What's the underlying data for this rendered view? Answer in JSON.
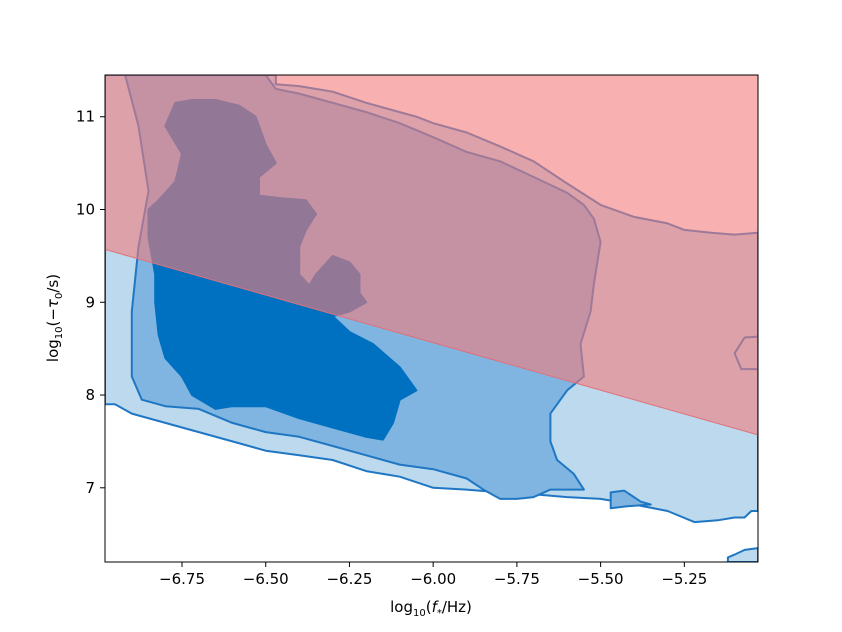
{
  "chart_data": {
    "type": "contour",
    "xlabel": "log10(f*/Hz)",
    "ylabel": "log10(−τ0/s)",
    "xlim": [
      -6.98,
      -5.03
    ],
    "ylim": [
      6.2,
      11.45
    ],
    "xticks": [
      {
        "value": -6.75,
        "label": "−6.75"
      },
      {
        "value": -6.5,
        "label": "−6.50"
      },
      {
        "value": -6.25,
        "label": "−6.25"
      },
      {
        "value": -6.0,
        "label": "−6.00"
      },
      {
        "value": -5.75,
        "label": "−5.75"
      },
      {
        "value": -5.5,
        "label": "−5.50"
      },
      {
        "value": -5.25,
        "label": "−5.25"
      }
    ],
    "yticks": [
      {
        "value": 7,
        "label": "7"
      },
      {
        "value": 8,
        "label": "8"
      },
      {
        "value": 9,
        "label": "9"
      },
      {
        "value": 10,
        "label": "10"
      },
      {
        "value": 11,
        "label": "11"
      }
    ],
    "excluded_region": {
      "color": "#f47c7c",
      "boundary_line": [
        [
          -6.98,
          9.57
        ],
        [
          -5.03,
          7.57
        ]
      ]
    },
    "contours": [
      {
        "level": "outer",
        "fill": "#bcd9ee",
        "stroke": "#1f77c4",
        "points": [
          [
            -6.98,
            7.9
          ],
          [
            -6.95,
            7.9
          ],
          [
            -6.9,
            7.8
          ],
          [
            -6.8,
            7.7
          ],
          [
            -6.7,
            7.6
          ],
          [
            -6.6,
            7.5
          ],
          [
            -6.5,
            7.4
          ],
          [
            -6.4,
            7.35
          ],
          [
            -6.3,
            7.3
          ],
          [
            -6.2,
            7.18
          ],
          [
            -6.1,
            7.12
          ],
          [
            -6.0,
            7.0
          ],
          [
            -5.9,
            6.98
          ],
          [
            -5.8,
            6.95
          ],
          [
            -5.7,
            6.93
          ],
          [
            -5.6,
            6.9
          ],
          [
            -5.5,
            6.88
          ],
          [
            -5.4,
            6.82
          ],
          [
            -5.3,
            6.75
          ],
          [
            -5.22,
            6.63
          ],
          [
            -5.15,
            6.65
          ],
          [
            -5.1,
            6.68
          ],
          [
            -5.07,
            6.68
          ],
          [
            -5.05,
            6.75
          ],
          [
            -5.03,
            6.75
          ],
          [
            -5.03,
            9.75
          ],
          [
            -5.1,
            9.73
          ],
          [
            -5.17,
            9.75
          ],
          [
            -5.25,
            9.78
          ],
          [
            -5.3,
            9.85
          ],
          [
            -5.4,
            9.92
          ],
          [
            -5.5,
            10.05
          ],
          [
            -5.6,
            10.28
          ],
          [
            -5.7,
            10.52
          ],
          [
            -5.8,
            10.68
          ],
          [
            -5.9,
            10.83
          ],
          [
            -6.0,
            10.93
          ],
          [
            -6.05,
            11.0
          ],
          [
            -6.1,
            11.05
          ],
          [
            -6.2,
            11.15
          ],
          [
            -6.3,
            11.27
          ],
          [
            -6.4,
            11.33
          ],
          [
            -6.47,
            11.35
          ],
          [
            -6.47,
            11.45
          ],
          [
            -6.98,
            11.45
          ]
        ]
      },
      {
        "level": "middle",
        "fill": "#7fb5e0",
        "stroke": "#1f77c4",
        "points": [
          [
            -6.92,
            11.45
          ],
          [
            -6.88,
            10.9
          ],
          [
            -6.85,
            10.2
          ],
          [
            -6.88,
            9.6
          ],
          [
            -6.9,
            8.9
          ],
          [
            -6.9,
            8.2
          ],
          [
            -6.87,
            7.95
          ],
          [
            -6.8,
            7.88
          ],
          [
            -6.7,
            7.85
          ],
          [
            -6.6,
            7.7
          ],
          [
            -6.5,
            7.6
          ],
          [
            -6.4,
            7.55
          ],
          [
            -6.3,
            7.45
          ],
          [
            -6.2,
            7.35
          ],
          [
            -6.1,
            7.25
          ],
          [
            -6.0,
            7.2
          ],
          [
            -5.9,
            7.1
          ],
          [
            -5.85,
            6.98
          ],
          [
            -5.8,
            6.88
          ],
          [
            -5.75,
            6.88
          ],
          [
            -5.7,
            6.9
          ],
          [
            -5.65,
            6.98
          ],
          [
            -5.6,
            6.98
          ],
          [
            -5.55,
            6.98
          ],
          [
            -5.58,
            7.15
          ],
          [
            -5.63,
            7.3
          ],
          [
            -5.65,
            7.5
          ],
          [
            -5.65,
            7.8
          ],
          [
            -5.6,
            8.05
          ],
          [
            -5.55,
            8.2
          ],
          [
            -5.56,
            8.55
          ],
          [
            -5.53,
            8.9
          ],
          [
            -5.52,
            9.2
          ],
          [
            -5.5,
            9.65
          ],
          [
            -5.52,
            9.9
          ],
          [
            -5.55,
            10.05
          ],
          [
            -5.6,
            10.18
          ],
          [
            -5.7,
            10.35
          ],
          [
            -5.8,
            10.52
          ],
          [
            -5.9,
            10.62
          ],
          [
            -6.0,
            10.78
          ],
          [
            -6.1,
            10.93
          ],
          [
            -6.2,
            11.05
          ],
          [
            -6.3,
            11.15
          ],
          [
            -6.4,
            11.25
          ],
          [
            -6.47,
            11.3
          ],
          [
            -6.5,
            11.45
          ]
        ]
      },
      {
        "level": "inner",
        "fill": "#0070c0",
        "stroke": "#0070c0",
        "points": [
          [
            -6.77,
            11.15
          ],
          [
            -6.72,
            11.18
          ],
          [
            -6.65,
            11.18
          ],
          [
            -6.58,
            11.12
          ],
          [
            -6.53,
            11.0
          ],
          [
            -6.5,
            10.7
          ],
          [
            -6.47,
            10.5
          ],
          [
            -6.52,
            10.35
          ],
          [
            -6.52,
            10.15
          ],
          [
            -6.45,
            10.12
          ],
          [
            -6.38,
            10.1
          ],
          [
            -6.35,
            9.95
          ],
          [
            -6.38,
            9.78
          ],
          [
            -6.4,
            9.6
          ],
          [
            -6.4,
            9.3
          ],
          [
            -6.37,
            9.18
          ],
          [
            -6.35,
            9.3
          ],
          [
            -6.3,
            9.5
          ],
          [
            -6.25,
            9.43
          ],
          [
            -6.22,
            9.3
          ],
          [
            -6.22,
            9.1
          ],
          [
            -6.2,
            9.0
          ],
          [
            -6.25,
            8.9
          ],
          [
            -6.3,
            8.85
          ],
          [
            -6.25,
            8.68
          ],
          [
            -6.18,
            8.55
          ],
          [
            -6.1,
            8.3
          ],
          [
            -6.05,
            8.05
          ],
          [
            -6.1,
            7.95
          ],
          [
            -6.12,
            7.7
          ],
          [
            -6.15,
            7.52
          ],
          [
            -6.2,
            7.55
          ],
          [
            -6.25,
            7.6
          ],
          [
            -6.3,
            7.65
          ],
          [
            -6.4,
            7.75
          ],
          [
            -6.5,
            7.88
          ],
          [
            -6.55,
            7.88
          ],
          [
            -6.6,
            7.88
          ],
          [
            -6.65,
            7.85
          ],
          [
            -6.72,
            8.0
          ],
          [
            -6.75,
            8.2
          ],
          [
            -6.8,
            8.4
          ],
          [
            -6.82,
            8.65
          ],
          [
            -6.83,
            9.0
          ],
          [
            -6.83,
            9.3
          ],
          [
            -6.85,
            9.7
          ],
          [
            -6.85,
            10.0
          ],
          [
            -6.82,
            10.1
          ],
          [
            -6.77,
            10.3
          ],
          [
            -6.75,
            10.6
          ],
          [
            -6.8,
            10.9
          ]
        ]
      },
      {
        "level": "island",
        "fill": "#7fb5e0",
        "stroke": "#1f77c4",
        "points": [
          [
            -5.47,
            6.95
          ],
          [
            -5.43,
            6.97
          ],
          [
            -5.38,
            6.85
          ],
          [
            -5.35,
            6.82
          ],
          [
            -5.42,
            6.8
          ],
          [
            -5.47,
            6.78
          ]
        ]
      },
      {
        "level": "edge-island-right",
        "fill": "#bcd9ee",
        "stroke": "#1f77c4",
        "points": [
          [
            -5.03,
            8.63
          ],
          [
            -5.07,
            8.62
          ],
          [
            -5.1,
            8.45
          ],
          [
            -5.08,
            8.28
          ],
          [
            -5.05,
            8.28
          ],
          [
            -5.03,
            8.28
          ]
        ]
      },
      {
        "level": "edge-island-bottom",
        "fill": "#bcd9ee",
        "stroke": "#1f77c4",
        "points": [
          [
            -5.03,
            6.35
          ],
          [
            -5.07,
            6.33
          ],
          [
            -5.1,
            6.28
          ],
          [
            -5.12,
            6.25
          ],
          [
            -5.12,
            6.2
          ],
          [
            -5.03,
            6.2
          ]
        ]
      }
    ]
  }
}
